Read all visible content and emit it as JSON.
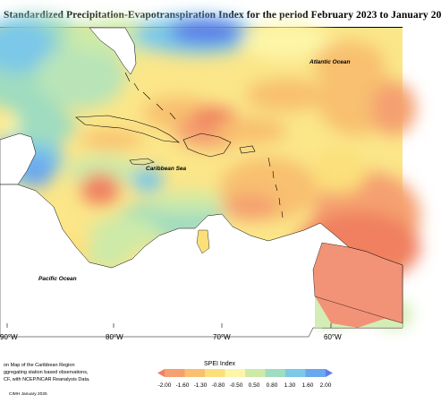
{
  "map": {
    "title": "Standardized Precipitation-Evapotranspiration Index for the period February 2023 to January 20",
    "ocean_labels": {
      "atlantic": "Atlantic Ocean",
      "caribbean": "Caribbean Sea",
      "pacific": "Pacific Ocean"
    },
    "longitude_labels": [
      "90°W",
      "80°W",
      "70°W",
      "60°W"
    ],
    "notes": [
      "on Map of the Caribbean Region",
      "ggregating station based observations,",
      "CF, with NCEP/NCAR Reanalysis Data."
    ],
    "credit": "CIMH January 2025"
  },
  "legend": {
    "title": "SPEI Index",
    "ticks": [
      "-2.00",
      "-1.60",
      "-1.30",
      "-0.80",
      "-0.50",
      "0.50",
      "0.80",
      "1.30",
      "1.60",
      "2.00"
    ],
    "colors": [
      "#f08060",
      "#f5a070",
      "#f8c070",
      "#fbe07a",
      "#fdf6a8",
      "#cdeaa8",
      "#9fdcc0",
      "#7bc8e8",
      "#6aa8ee",
      "#5b7ee8"
    ]
  }
}
